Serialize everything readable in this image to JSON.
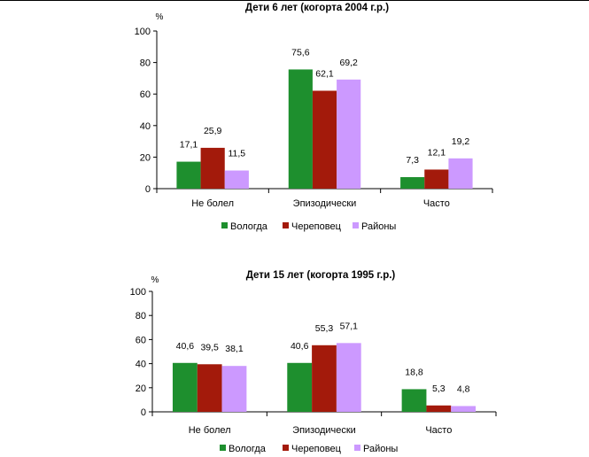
{
  "chart_data": [
    {
      "type": "bar",
      "title": "Дети 6 лет (когорта 2004 г.р.)",
      "ylabel": "%",
      "ylim": [
        0,
        100
      ],
      "yticks": [
        "0",
        "20",
        "40",
        "60",
        "80",
        "100"
      ],
      "categories": [
        "Не болел",
        "Эпизодически",
        "Часто"
      ],
      "series": [
        {
          "name": "Вологда",
          "values": [
            17.1,
            75.6,
            7.3
          ],
          "labels": [
            "17,1",
            "75,6",
            "7,3"
          ],
          "color": "#1e8f2e"
        },
        {
          "name": "Череповец",
          "values": [
            25.9,
            62.1,
            12.1
          ],
          "labels": [
            "25,9",
            "62,1",
            "12,1"
          ],
          "color": "#a31a0b"
        },
        {
          "name": "Районы",
          "values": [
            11.5,
            69.2,
            19.2
          ],
          "labels": [
            "11,5",
            "69,2",
            "19,2"
          ],
          "color": "#cc99ff"
        }
      ],
      "grid": false,
      "legend": "bottom"
    },
    {
      "type": "bar",
      "title": "Дети 15 лет (когорта 1995 г.р.)",
      "ylabel": "%",
      "ylim": [
        0,
        100
      ],
      "yticks": [
        "0",
        "20",
        "40",
        "60",
        "80",
        "100"
      ],
      "categories": [
        "Не болел",
        "Эпизодически",
        "Часто"
      ],
      "series": [
        {
          "name": "Вологда",
          "values": [
            40.6,
            40.6,
            18.8
          ],
          "labels": [
            "40,6",
            "40,6",
            "18,8"
          ],
          "color": "#1e8f2e"
        },
        {
          "name": "Череповец",
          "values": [
            39.5,
            55.3,
            5.3
          ],
          "labels": [
            "39,5",
            "55,3",
            "5,3"
          ],
          "color": "#a31a0b"
        },
        {
          "name": "Районы",
          "values": [
            38.1,
            57.1,
            4.8
          ],
          "labels": [
            "38,1",
            "57,1",
            "4,8"
          ],
          "color": "#cc99ff"
        }
      ],
      "grid": false,
      "legend": "bottom"
    }
  ]
}
